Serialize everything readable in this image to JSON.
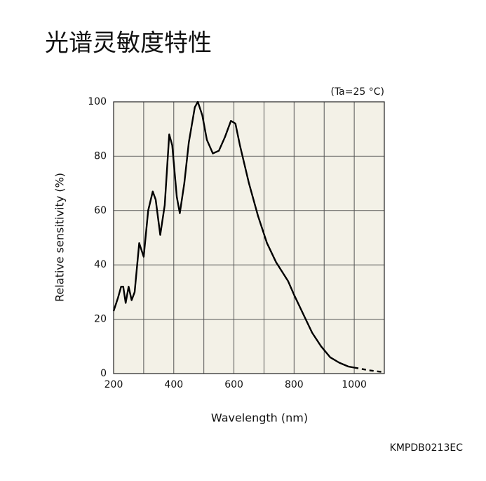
{
  "chart_data": {
    "type": "line",
    "title": "光谱灵敏度特性",
    "annotation": "(Ta=25 °C)",
    "code": "KMPDB0213EC",
    "x_label": "Wavelength (nm)",
    "y_label": "Relative sensitivity (%)",
    "xlim": [
      200,
      1100
    ],
    "ylim": [
      0,
      100
    ],
    "xticks": [
      200,
      400,
      600,
      800,
      1000
    ],
    "yticks": [
      0,
      20,
      40,
      60,
      80,
      100
    ],
    "xgrid": [
      300,
      500,
      700,
      900,
      1100
    ],
    "grid": true,
    "background": "#f3f1e7",
    "series": [
      {
        "color": "#000000",
        "dash": false,
        "x": [
          200,
          215,
          225,
          232,
          240,
          250,
          260,
          270,
          285,
          300,
          315,
          330,
          340,
          355,
          370,
          385,
          395,
          410,
          420,
          435,
          450,
          470,
          480,
          495,
          510,
          530,
          550,
          570,
          590,
          605,
          620,
          650,
          680,
          710,
          740,
          780,
          800,
          830,
          860,
          890,
          920,
          950,
          980,
          1000
        ],
        "values": [
          23,
          28,
          32,
          32,
          26,
          32,
          27,
          30,
          48,
          43,
          60,
          67,
          64,
          51,
          62,
          88,
          84,
          65,
          59,
          70,
          85,
          98,
          100,
          95,
          86,
          81,
          82,
          87,
          93,
          92,
          84,
          70,
          58,
          48,
          41,
          34,
          29,
          22,
          15,
          10,
          6,
          4,
          2.6,
          2.2
        ]
      },
      {
        "color": "#000000",
        "dash": true,
        "x": [
          1000,
          1050,
          1100
        ],
        "values": [
          2.2,
          1.2,
          0.5
        ]
      }
    ]
  }
}
